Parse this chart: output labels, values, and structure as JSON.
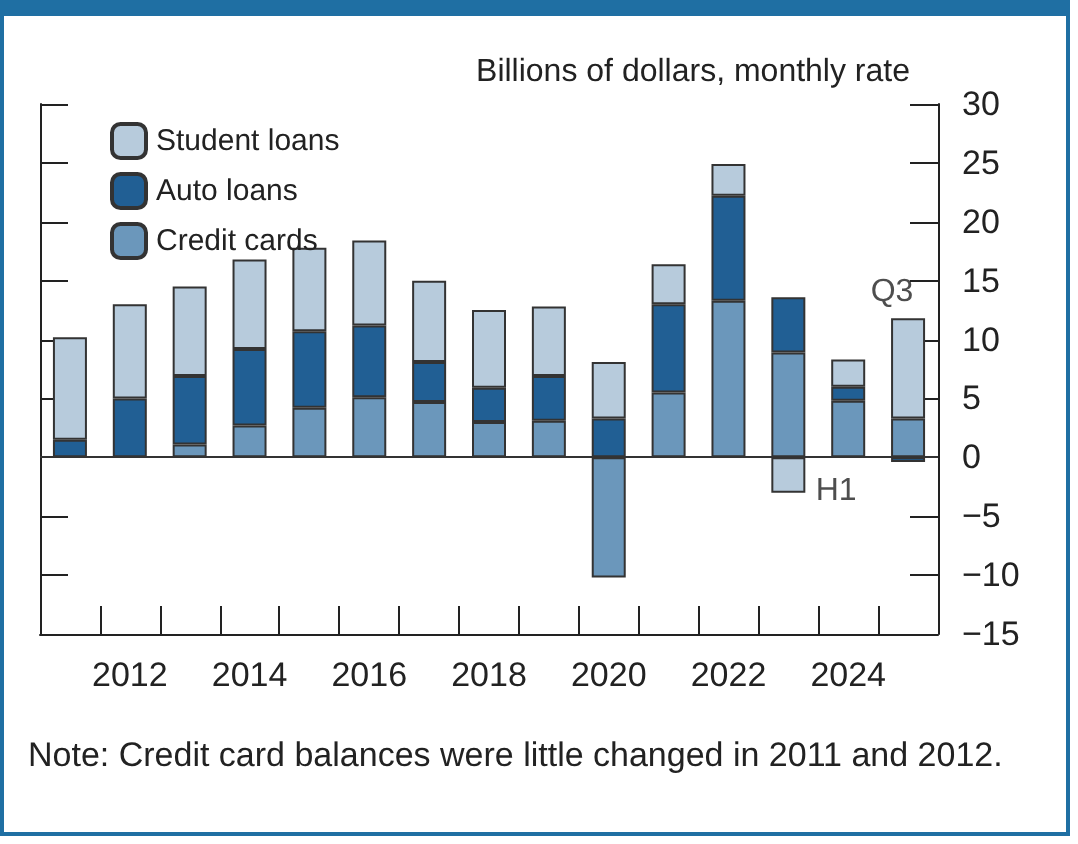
{
  "chart_data": {
    "type": "bar",
    "stacked": true,
    "ylabel": "Billions of dollars, monthly rate",
    "categories": [
      null,
      "2012",
      null,
      "2014",
      null,
      "2016",
      null,
      "2018",
      null,
      "2020",
      null,
      "2022",
      null,
      "2024",
      null
    ],
    "series": [
      {
        "name": "Credit cards",
        "color": "#6b97bb",
        "values": [
          null,
          null,
          1.1,
          2.7,
          4.2,
          5.1,
          4.7,
          3.0,
          3.1,
          -10.2,
          5.5,
          13.3,
          8.9,
          4.8,
          3.3
        ]
      },
      {
        "name": "Auto loans",
        "color": "#215f94",
        "values": [
          1.5,
          5.0,
          5.8,
          6.5,
          6.5,
          6.1,
          3.4,
          2.9,
          3.8,
          3.3,
          7.5,
          8.9,
          4.7,
          1.2,
          -0.4
        ]
      },
      {
        "name": "Student loans",
        "color": "#b7cbdc",
        "values": [
          8.7,
          8.0,
          7.6,
          7.6,
          7.1,
          7.2,
          6.9,
          6.6,
          5.9,
          4.8,
          3.4,
          2.7,
          -3.0,
          2.3,
          8.5
        ]
      }
    ],
    "ylim": [
      -15,
      30
    ],
    "yticks": [
      -15,
      -10,
      -5,
      0,
      5,
      10,
      15,
      20,
      25,
      30
    ],
    "grid": false,
    "legend": "top left",
    "ref_lines": [
      {
        "axis": "y",
        "value": 0,
        "color": "#333333"
      }
    ],
    "annotations": [
      "H1",
      "Q3",
      "Note: Credit card balances were little changed in 2011 and 2012."
    ]
  }
}
